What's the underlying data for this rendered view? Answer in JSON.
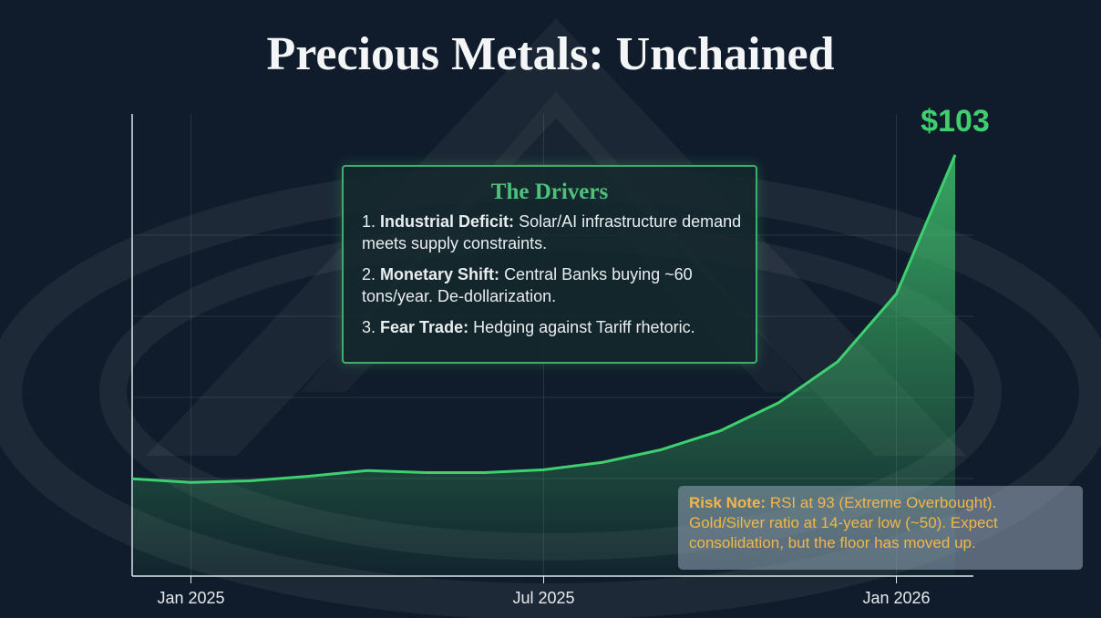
{
  "chart_data": {
    "type": "area",
    "title": "Precious Metals: Unchained",
    "categories": [
      null,
      "Jan 2025",
      null,
      null,
      null,
      null,
      null,
      "Jul 2025",
      null,
      null,
      null,
      null,
      null,
      "Jan 2026",
      null
    ],
    "values": [
      23.8,
      22.9,
      23.3,
      24.4,
      25.8,
      25.3,
      25.3,
      26,
      27.8,
      30.9,
      35.5,
      42.4,
      52.4,
      69,
      103
    ],
    "value_labels": [
      null,
      null,
      null,
      null,
      null,
      null,
      null,
      null,
      null,
      null,
      null,
      null,
      null,
      null,
      "$103"
    ],
    "color": "#3ecf6e",
    "ylim": [
      0,
      113
    ]
  },
  "drivers": {
    "title": "The Drivers",
    "items": [
      {
        "number": "1.",
        "lead": "Industrial Deficit:",
        "text": "Solar/AI infrastructure demand meets supply constraints."
      },
      {
        "number": "2.",
        "lead": "Monetary Shift:",
        "text": "Central Banks buying ~60 tons/year. De-dollarization."
      },
      {
        "number": "3.",
        "lead": "Fear Trade:",
        "text": "Hedging against Tariff rhetoric."
      }
    ]
  },
  "risk_note": {
    "lead": "Risk Note:",
    "text": "RSI at 93 (Extreme Overbought). Gold/Silver ratio at 14-year low (~50). Expect consolidation, but the floor has moved up."
  }
}
